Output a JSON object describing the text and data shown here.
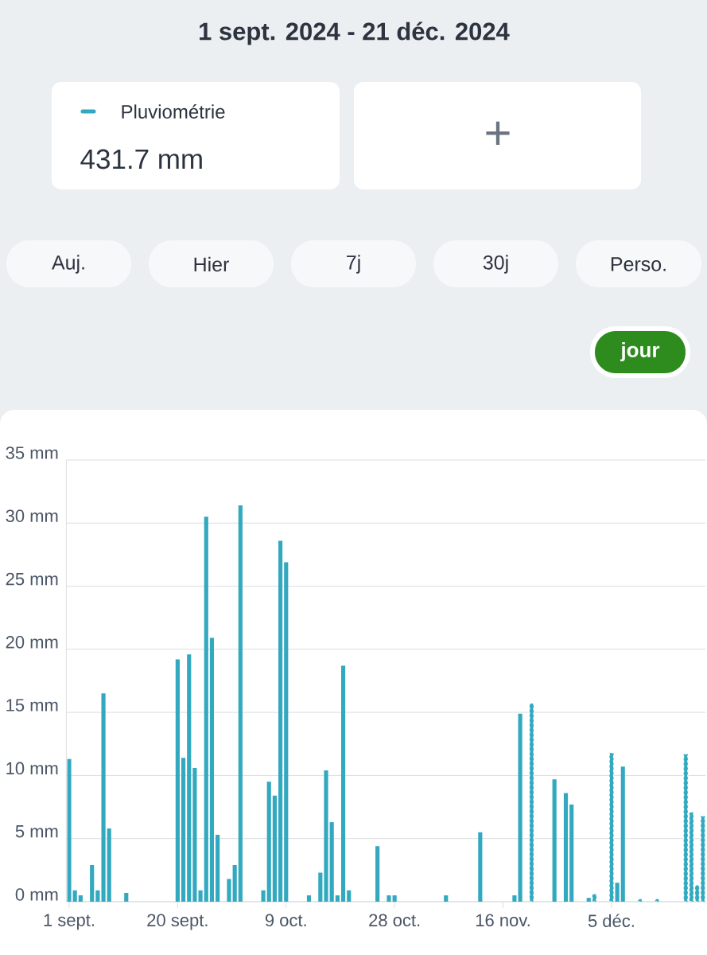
{
  "chart_data": {
    "type": "bar",
    "title": "1 sept. 2024 - 21 déc. 2024",
    "categories": [
      "1 sept.",
      null,
      null,
      null,
      null,
      null,
      null,
      null,
      null,
      null,
      null,
      null,
      null,
      null,
      null,
      null,
      null,
      null,
      null,
      "20 sept.",
      null,
      null,
      null,
      null,
      null,
      null,
      null,
      null,
      null,
      null,
      null,
      null,
      null,
      null,
      null,
      null,
      null,
      null,
      "9 oct.",
      null,
      null,
      null,
      null,
      null,
      null,
      null,
      null,
      null,
      null,
      null,
      null,
      null,
      null,
      null,
      null,
      null,
      null,
      "28 oct.",
      null,
      null,
      null,
      null,
      null,
      null,
      null,
      null,
      null,
      null,
      null,
      null,
      null,
      null,
      null,
      null,
      null,
      null,
      "16 nov.",
      null,
      null,
      null,
      null,
      null,
      null,
      null,
      null,
      null,
      null,
      null,
      null,
      null,
      null,
      null,
      null,
      null,
      null,
      "5 déc.",
      null,
      null,
      null,
      null,
      null,
      null,
      null,
      null,
      null,
      null,
      null,
      null,
      null,
      null,
      null,
      null
    ],
    "series": [
      {
        "name": "Pluviométrie",
        "color": "#33a9c0",
        "values": [
          11.3,
          0.9,
          0.5,
          null,
          2.9,
          0.9,
          16.5,
          5.8,
          null,
          null,
          0.7,
          null,
          null,
          null,
          null,
          null,
          null,
          null,
          null,
          19.2,
          11.4,
          19.6,
          10.6,
          0.9,
          30.5,
          20.9,
          5.3,
          null,
          1.8,
          2.9,
          31.4,
          null,
          null,
          null,
          0.9,
          9.5,
          8.4,
          28.6,
          26.9,
          null,
          null,
          null,
          0.5,
          null,
          2.3,
          10.4,
          6.3,
          0.5,
          18.7,
          0.9,
          null,
          null,
          null,
          null,
          4.4,
          null,
          0.5,
          0.5,
          null,
          null,
          null,
          null,
          null,
          null,
          null,
          null,
          0.5,
          null,
          null,
          null,
          null,
          null,
          5.5,
          null,
          null,
          null,
          null,
          null,
          0.5,
          14.9,
          null,
          null,
          null,
          null,
          null,
          9.7,
          null,
          8.6,
          7.7,
          null,
          null,
          0.3,
          null,
          null,
          null,
          null,
          1.5,
          10.7,
          null,
          null,
          null,
          null,
          null,
          null,
          null,
          null,
          null,
          null,
          null,
          null,
          null,
          null
        ]
      },
      {
        "color": "#33a9c0",
        "line_style": "dashed",
        "values": [
          null,
          null,
          null,
          null,
          null,
          null,
          null,
          null,
          null,
          null,
          null,
          null,
          null,
          null,
          null,
          null,
          null,
          null,
          null,
          null,
          null,
          null,
          null,
          null,
          null,
          null,
          null,
          null,
          null,
          null,
          null,
          null,
          null,
          null,
          null,
          null,
          null,
          null,
          null,
          null,
          null,
          null,
          null,
          null,
          null,
          null,
          null,
          null,
          null,
          null,
          null,
          null,
          null,
          null,
          null,
          null,
          null,
          null,
          null,
          null,
          null,
          null,
          null,
          null,
          null,
          null,
          null,
          null,
          null,
          null,
          null,
          null,
          null,
          null,
          null,
          null,
          null,
          null,
          null,
          null,
          null,
          15.7,
          null,
          null,
          null,
          null,
          null,
          null,
          null,
          null,
          null,
          null,
          0.6,
          null,
          null,
          11.8,
          null,
          null,
          null,
          null,
          0.2,
          null,
          null,
          0.2,
          null,
          null,
          null,
          null,
          11.7,
          7.1,
          1.3,
          6.8
        ]
      }
    ],
    "ylim": [
      0,
      35
    ],
    "yticks": [
      {
        "value": 0,
        "label": "0 mm"
      },
      {
        "value": 5,
        "label": "5 mm"
      },
      {
        "value": 10,
        "label": "10 mm"
      },
      {
        "value": 15,
        "label": "15 mm"
      },
      {
        "value": 20,
        "label": "20 mm"
      },
      {
        "value": 25,
        "label": "25 mm"
      },
      {
        "value": 30,
        "label": "30 mm"
      },
      {
        "value": 35,
        "label": "35 mm"
      }
    ],
    "grid": "y",
    "legend": "top left",
    "annotations": [
      "431.7 mm",
      "+",
      "Auj.",
      "Hier",
      "7j",
      "30j",
      "Perso.",
      "jour"
    ]
  }
}
